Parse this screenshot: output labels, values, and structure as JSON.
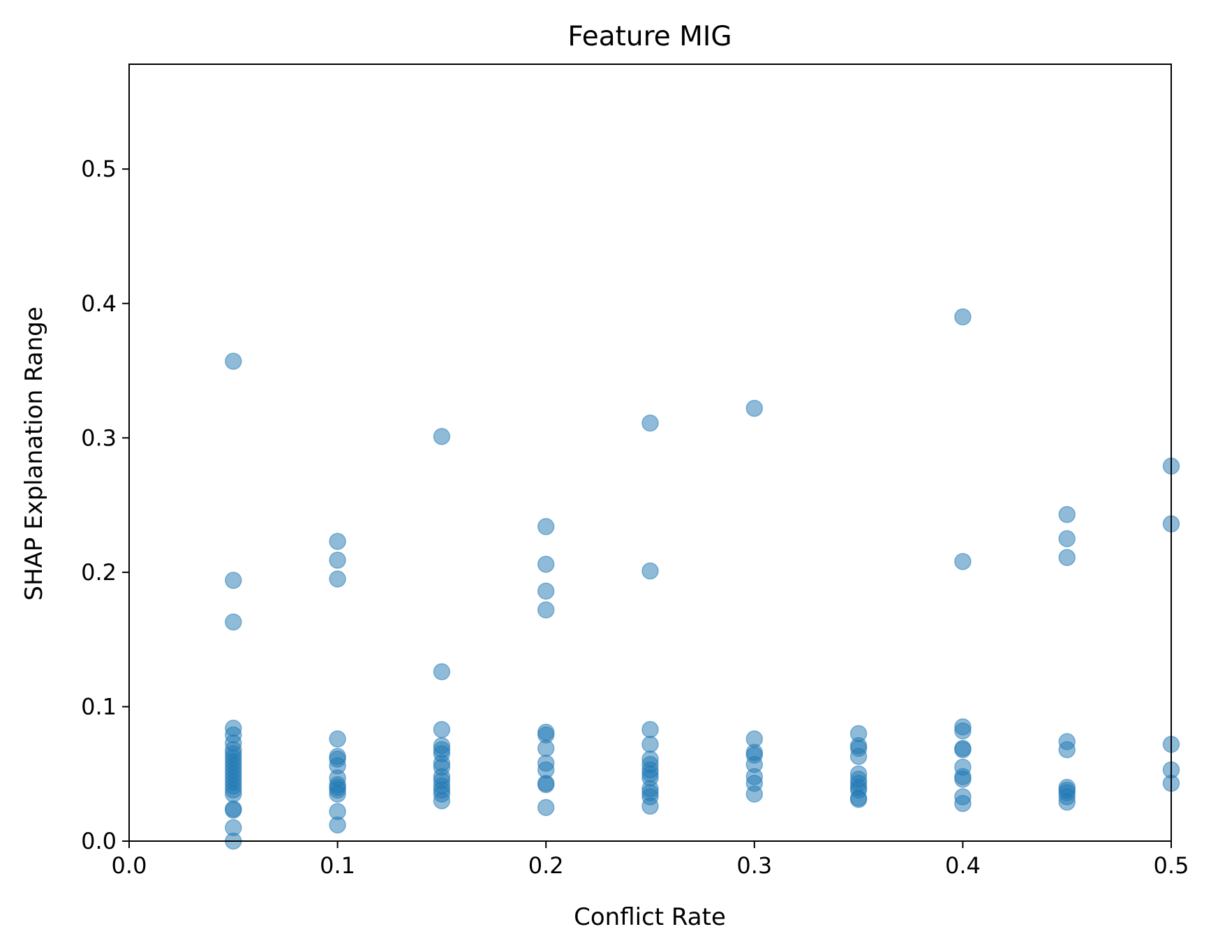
{
  "chart_data": {
    "type": "scatter",
    "title": "Feature MIG",
    "xlabel": "Conflict Rate",
    "ylabel": "SHAP Explanation Range",
    "xlim": [
      0.0,
      0.5
    ],
    "ylim": [
      0.0,
      0.578
    ],
    "xticks": [
      "0.0",
      "0.1",
      "0.2",
      "0.3",
      "0.4",
      "0.5"
    ],
    "yticks": [
      "0.0",
      "0.1",
      "0.2",
      "0.3",
      "0.4",
      "0.5"
    ],
    "grid": false,
    "marker_color": "#1f77b4",
    "marker_alpha": 0.5,
    "series": [
      {
        "points": [
          [
            0.05,
            0.357
          ],
          [
            0.05,
            0.194
          ],
          [
            0.05,
            0.163
          ],
          [
            0.05,
            0.084
          ],
          [
            0.05,
            0.079
          ],
          [
            0.05,
            0.073
          ],
          [
            0.05,
            0.068
          ],
          [
            0.05,
            0.065
          ],
          [
            0.05,
            0.062
          ],
          [
            0.05,
            0.059
          ],
          [
            0.05,
            0.056
          ],
          [
            0.05,
            0.053
          ],
          [
            0.05,
            0.05
          ],
          [
            0.05,
            0.047
          ],
          [
            0.05,
            0.044
          ],
          [
            0.05,
            0.041
          ],
          [
            0.05,
            0.038
          ],
          [
            0.05,
            0.035
          ],
          [
            0.05,
            0.024
          ],
          [
            0.05,
            0.023
          ],
          [
            0.05,
            0.01
          ],
          [
            0.05,
            0.0
          ],
          [
            0.1,
            0.223
          ],
          [
            0.1,
            0.209
          ],
          [
            0.1,
            0.195
          ],
          [
            0.1,
            0.076
          ],
          [
            0.1,
            0.063
          ],
          [
            0.1,
            0.061
          ],
          [
            0.1,
            0.056
          ],
          [
            0.1,
            0.047
          ],
          [
            0.1,
            0.042
          ],
          [
            0.1,
            0.04
          ],
          [
            0.1,
            0.038
          ],
          [
            0.1,
            0.035
          ],
          [
            0.1,
            0.022
          ],
          [
            0.1,
            0.012
          ],
          [
            0.15,
            0.301
          ],
          [
            0.15,
            0.126
          ],
          [
            0.15,
            0.083
          ],
          [
            0.15,
            0.071
          ],
          [
            0.15,
            0.068
          ],
          [
            0.15,
            0.065
          ],
          [
            0.15,
            0.058
          ],
          [
            0.15,
            0.055
          ],
          [
            0.15,
            0.048
          ],
          [
            0.15,
            0.045
          ],
          [
            0.15,
            0.041
          ],
          [
            0.15,
            0.038
          ],
          [
            0.15,
            0.035
          ],
          [
            0.15,
            0.03
          ],
          [
            0.2,
            0.234
          ],
          [
            0.2,
            0.206
          ],
          [
            0.2,
            0.186
          ],
          [
            0.2,
            0.172
          ],
          [
            0.2,
            0.081
          ],
          [
            0.2,
            0.079
          ],
          [
            0.2,
            0.069
          ],
          [
            0.2,
            0.058
          ],
          [
            0.2,
            0.053
          ],
          [
            0.2,
            0.043
          ],
          [
            0.2,
            0.042
          ],
          [
            0.2,
            0.025
          ],
          [
            0.25,
            0.311
          ],
          [
            0.25,
            0.201
          ],
          [
            0.25,
            0.083
          ],
          [
            0.25,
            0.072
          ],
          [
            0.25,
            0.061
          ],
          [
            0.25,
            0.057
          ],
          [
            0.25,
            0.053
          ],
          [
            0.25,
            0.05
          ],
          [
            0.25,
            0.047
          ],
          [
            0.25,
            0.039
          ],
          [
            0.25,
            0.036
          ],
          [
            0.25,
            0.033
          ],
          [
            0.25,
            0.026
          ],
          [
            0.3,
            0.322
          ],
          [
            0.3,
            0.076
          ],
          [
            0.3,
            0.066
          ],
          [
            0.3,
            0.064
          ],
          [
            0.3,
            0.057
          ],
          [
            0.3,
            0.048
          ],
          [
            0.3,
            0.043
          ],
          [
            0.3,
            0.035
          ],
          [
            0.35,
            0.08
          ],
          [
            0.35,
            0.071
          ],
          [
            0.35,
            0.069
          ],
          [
            0.35,
            0.063
          ],
          [
            0.35,
            0.05
          ],
          [
            0.35,
            0.046
          ],
          [
            0.35,
            0.043
          ],
          [
            0.35,
            0.04
          ],
          [
            0.35,
            0.038
          ],
          [
            0.35,
            0.032
          ],
          [
            0.35,
            0.031
          ],
          [
            0.4,
            0.39
          ],
          [
            0.4,
            0.208
          ],
          [
            0.4,
            0.085
          ],
          [
            0.4,
            0.082
          ],
          [
            0.4,
            0.069
          ],
          [
            0.4,
            0.068
          ],
          [
            0.4,
            0.055
          ],
          [
            0.4,
            0.048
          ],
          [
            0.4,
            0.046
          ],
          [
            0.4,
            0.033
          ],
          [
            0.4,
            0.028
          ],
          [
            0.45,
            0.243
          ],
          [
            0.45,
            0.225
          ],
          [
            0.45,
            0.211
          ],
          [
            0.45,
            0.074
          ],
          [
            0.45,
            0.068
          ],
          [
            0.45,
            0.04
          ],
          [
            0.45,
            0.038
          ],
          [
            0.45,
            0.036
          ],
          [
            0.45,
            0.033
          ],
          [
            0.45,
            0.029
          ],
          [
            0.5,
            0.279
          ],
          [
            0.5,
            0.236
          ],
          [
            0.5,
            0.072
          ],
          [
            0.5,
            0.053
          ],
          [
            0.5,
            0.043
          ]
        ]
      }
    ]
  }
}
